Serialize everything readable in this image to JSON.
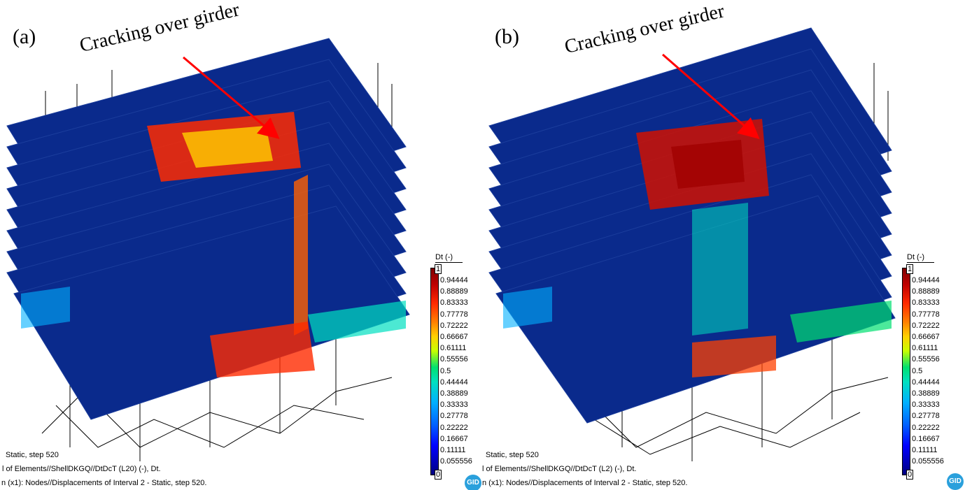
{
  "panels": [
    {
      "label": "(a)",
      "annotation": "Cracking over girder",
      "legend_title": "Dt (-)",
      "legend_max": "1",
      "legend_min": "0",
      "legend_ticks": [
        "0.94444",
        "0.88889",
        "0.83333",
        "0.77778",
        "0.72222",
        "0.66667",
        "0.61111",
        "0.55556",
        "0.5",
        "0.44444",
        "0.38889",
        "0.33333",
        "0.27778",
        "0.22222",
        "0.16667",
        "0.11111",
        "0.055556"
      ],
      "footer": [
        "Static, step 520",
        "l of Elements//ShellDKGQ//DtDcT (L20) (-), Dt.",
        "n (x1): Nodes//Displacements of Interval 2 - Static, step 520."
      ],
      "logo": "GID"
    },
    {
      "label": "(b)",
      "annotation": "Cracking over girder",
      "legend_title": "Dt (-)",
      "legend_max": "1",
      "legend_min": "0",
      "legend_ticks": [
        "0.94444",
        "0.88889",
        "0.83333",
        "0.77778",
        "0.72222",
        "0.66667",
        "0.61111",
        "0.55556",
        "0.5",
        "0.44444",
        "0.38889",
        "0.33333",
        "0.27778",
        "0.22222",
        "0.16667",
        "0.11111",
        "0.055556"
      ],
      "footer": [
        "Static, step 520",
        "l of Elements//ShellDKGQ//DtDcT (L2) (-), Dt.",
        "n (x1): Nodes//Displacements of Interval 2 - Static, step 520."
      ],
      "logo": "GID"
    }
  ],
  "colors": {
    "slab": "#0a2a8c",
    "crack_high": "#c00000",
    "crack_mid": "#ffd000",
    "crack_low": "#00b0ff",
    "arrow": "#ff0000"
  }
}
